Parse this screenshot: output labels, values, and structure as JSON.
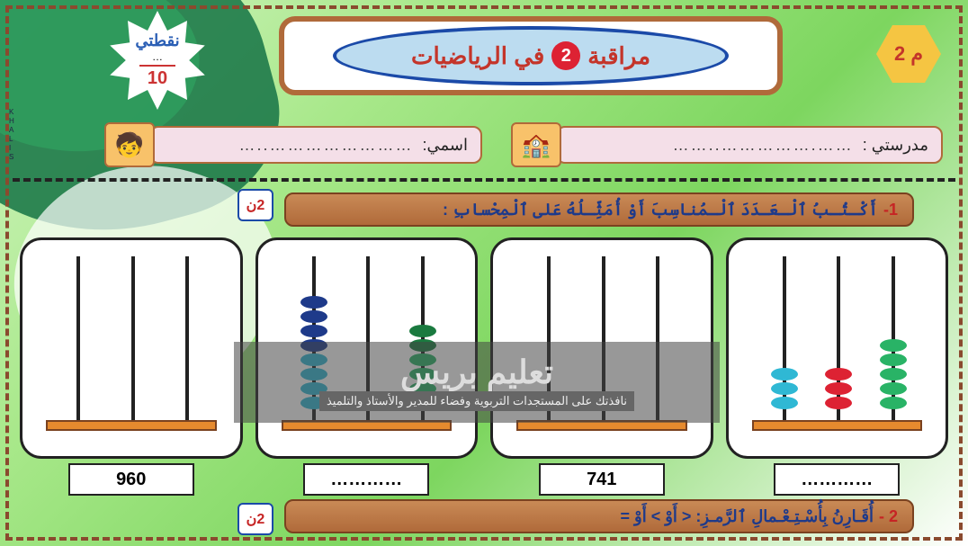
{
  "page": {
    "border_color": "#8a4a2e",
    "background_colors": [
      "#d4f5c4",
      "#a8e88a",
      "#7dd65f",
      "#ffffff"
    ]
  },
  "title": {
    "before": "مراقبة",
    "number": "2",
    "after": "في الرياضيات",
    "text_color": "#c4352a",
    "ellipse_fill": "#bcdcf0",
    "ellipse_border": "#1b4aa8",
    "frame_border": "#b06a3a"
  },
  "score_star": {
    "label": "نقطتي",
    "dots": "…",
    "denominator": "10"
  },
  "hexagon": {
    "label": "م 2",
    "fill": "#f5c542",
    "text_color": "#c4352a"
  },
  "inputs": {
    "school": {
      "label": "مدرستي  :",
      "value": "…….……………..……",
      "icon": "🏫"
    },
    "name": {
      "label": "اسمي:",
      "value": "……………………..…",
      "icon": "🧒"
    }
  },
  "question1": {
    "number": "1-",
    "text": "أَكْـتُـبُ ٱلْـعَـدَدَ ٱلْـمُناسِبَ أَوْ أُمَثِّـلُهُ عَلى ٱلْمِحْسابِ :",
    "badge": "2ن"
  },
  "question2": {
    "number": "2 -",
    "text": "أُقَـارِنُ بِأُسْـتِـعْـمالِ ٱلرَّمـزِ:   <  أَوْ  >  أَوْ  =",
    "badge": "2ن"
  },
  "abaci": [
    {
      "rods": [
        {
          "beads": []
        },
        {
          "beads": []
        },
        {
          "beads": []
        }
      ],
      "answer": "960",
      "base_color": "#e68a2e"
    },
    {
      "rods": [
        {
          "beads": [
            "#2fb8d4",
            "#2fb8d4",
            "#2fb8d4",
            "#2fb8d4",
            "#1e3a8a",
            "#1e3a8a",
            "#1e3a8a",
            "#1e3a8a"
          ]
        },
        {
          "beads": []
        },
        {
          "beads": [
            "#29b366",
            "#29b366",
            "#29b366",
            "#29b366",
            "#1a7a3f",
            "#1a7a3f"
          ]
        }
      ],
      "answer": "…………",
      "base_color": "#e68a2e"
    },
    {
      "rods": [
        {
          "beads": []
        },
        {
          "beads": []
        },
        {
          "beads": []
        }
      ],
      "answer": "741",
      "base_color": "#e68a2e"
    },
    {
      "rods": [
        {
          "beads": [
            "#2fb8d4",
            "#2fb8d4",
            "#2fb8d4"
          ]
        },
        {
          "beads": [
            "#d23",
            "#d23",
            "#d23"
          ]
        },
        {
          "beads": [
            "#29b366",
            "#29b366",
            "#29b366",
            "#29b366",
            "#29b366"
          ]
        }
      ],
      "answer": "…………",
      "base_color": "#e68a2e"
    }
  ],
  "watermark": {
    "big": "تعليم بريس",
    "small": "نافذتك على المستجدات التربوية وفضاء للمدير والأستاذ والتلميذ"
  },
  "side_credit": "KHALIS"
}
